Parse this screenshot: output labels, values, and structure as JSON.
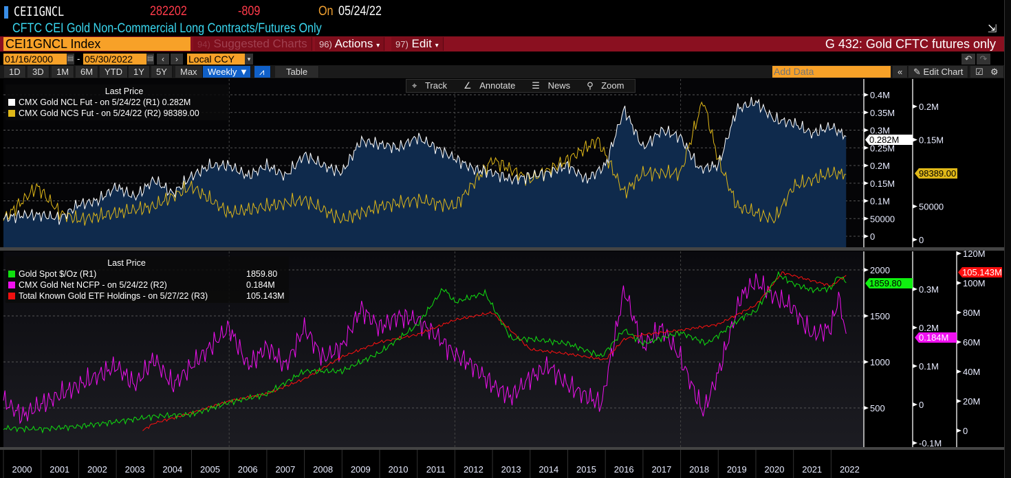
{
  "header": {
    "ticker": "CEI1GNCL",
    "last": "282202",
    "change": "-809",
    "on_label": "On",
    "date": "05/24/22",
    "description": "CFTC CEI Gold Non-Commercial Long Contracts/Futures Only"
  },
  "command": {
    "security": "CEI1GNCL Index",
    "suggested": "Suggested Charts",
    "suggested_num": "94)",
    "actions": "Actions",
    "actions_num": "96)",
    "edit": "Edit",
    "edit_num": "97)",
    "chart_title": "G 432: Gold CFTC futures only"
  },
  "range": {
    "start": "01/16/2000",
    "sep": "-",
    "end": "05/30/2022",
    "currency": "Local CCY"
  },
  "toolbar": {
    "periods": [
      "1D",
      "3D",
      "1M",
      "6M",
      "YTD",
      "1Y",
      "5Y",
      "Max"
    ],
    "frequency": "Weekly ▼",
    "table": "Table",
    "add_data_placeholder": "Add Data",
    "edit_chart": "Edit Chart"
  },
  "chart_tools": [
    "Track",
    "Annotate",
    "News",
    "Zoom"
  ],
  "colors": {
    "ncl": "#ffffff",
    "ncs": "#e0b818",
    "spot": "#10e010",
    "ncfp": "#f010f0",
    "etf": "#ff1010",
    "area": "#0f2a4c"
  },
  "chart_data": [
    {
      "type": "line",
      "title": "Last Price",
      "legend": [
        {
          "label": "CMX Gold NCL Fut -  on 5/24/22  (R1)",
          "value": "0.282M"
        },
        {
          "label": "CMX Gold NCS Fut -  on 5/24/22  (R2)",
          "value": "98389.00"
        }
      ],
      "axes": {
        "R1": {
          "ticks": [
            "0",
            "50000",
            "0.1M",
            "0.15M",
            "0.2M",
            "0.25M",
            "0.3M",
            "0.35M",
            "0.4M"
          ],
          "range": [
            0,
            0.42
          ]
        },
        "R2": {
          "ticks": [
            "0",
            "50000",
            "0.15M",
            "0.2M"
          ],
          "range": [
            0,
            0.21
          ]
        }
      },
      "series": [
        {
          "name": "CMX Gold NCL Fut",
          "unit": "M",
          "axis": "R1",
          "x": [
            2000,
            2000.5,
            2001,
            2001.5,
            2002,
            2002.5,
            2003,
            2003.5,
            2004,
            2004.5,
            2005,
            2005.5,
            2006,
            2006.5,
            2007,
            2007.5,
            2008,
            2008.5,
            2009,
            2009.5,
            2010,
            2010.5,
            2011,
            2011.5,
            2012,
            2012.5,
            2013,
            2013.5,
            2014,
            2014.5,
            2015,
            2015.5,
            2016,
            2016.5,
            2017,
            2017.5,
            2018,
            2018.5,
            2019,
            2019.5,
            2020,
            2020.5,
            2021,
            2021.5,
            2022,
            2022.4
          ],
          "y": [
            0.05,
            0.06,
            0.06,
            0.05,
            0.09,
            0.1,
            0.14,
            0.11,
            0.16,
            0.12,
            0.17,
            0.2,
            0.2,
            0.17,
            0.2,
            0.17,
            0.23,
            0.2,
            0.18,
            0.27,
            0.26,
            0.25,
            0.28,
            0.25,
            0.22,
            0.19,
            0.18,
            0.16,
            0.17,
            0.18,
            0.2,
            0.16,
            0.2,
            0.36,
            0.25,
            0.3,
            0.28,
            0.19,
            0.2,
            0.36,
            0.38,
            0.33,
            0.32,
            0.29,
            0.31,
            0.282
          ]
        },
        {
          "name": "CMX Gold NCS Fut",
          "unit": "M",
          "axis": "R2",
          "x": [
            2000,
            2000.9,
            2001.5,
            2002,
            2003,
            2004,
            2005,
            2006,
            2007,
            2008,
            2009,
            2010,
            2011,
            2012,
            2013,
            2014,
            2015,
            2015.8,
            2016.5,
            2017,
            2018,
            2018.6,
            2019,
            2019.5,
            2020,
            2020.5,
            2021,
            2021.5,
            2022,
            2022.4
          ],
          "y": [
            0.03,
            0.08,
            0.04,
            0.03,
            0.04,
            0.05,
            0.08,
            0.04,
            0.05,
            0.06,
            0.03,
            0.05,
            0.06,
            0.05,
            0.12,
            0.09,
            0.12,
            0.15,
            0.07,
            0.1,
            0.1,
            0.21,
            0.12,
            0.05,
            0.04,
            0.03,
            0.08,
            0.09,
            0.1,
            0.098
          ]
        }
      ]
    },
    {
      "type": "line",
      "title": "Last Price",
      "legend": [
        {
          "label": "Gold Spot $/Oz  (R1)",
          "value": "1859.80"
        },
        {
          "label": "CMX Gold Net NCFP -  on 5/24/22  (R2)",
          "value": "0.184M"
        },
        {
          "label": "Total Known Gold ETF Holdings -  on 5/27/22  (R3)",
          "value": "105.143M"
        }
      ],
      "axes": {
        "R1": {
          "ticks": [
            "500",
            "1000",
            "1500",
            "2000"
          ]
        },
        "R2": {
          "ticks": [
            "-0.1M",
            "0",
            "0.1M",
            "0.2M",
            "0.3M"
          ]
        },
        "R3": {
          "ticks": [
            "0",
            "20M",
            "40M",
            "60M",
            "80M",
            "100M",
            "120M"
          ]
        }
      },
      "series": [
        {
          "name": "Gold Spot $/Oz",
          "axis": "R1",
          "x": [
            2000,
            2001,
            2002,
            2003,
            2004,
            2005,
            2006,
            2007,
            2008,
            2009,
            2010,
            2011,
            2011.7,
            2012,
            2012.8,
            2013.5,
            2014,
            2015,
            2015.9,
            2016.5,
            2017,
            2018,
            2018.7,
            2019,
            2019.7,
            2020,
            2020.6,
            2021,
            2021.5,
            2022,
            2022.2,
            2022.4
          ],
          "y": [
            280,
            270,
            300,
            350,
            410,
            430,
            560,
            650,
            900,
            900,
            1100,
            1400,
            1800,
            1650,
            1750,
            1250,
            1250,
            1200,
            1060,
            1350,
            1200,
            1320,
            1200,
            1290,
            1500,
            1550,
            1950,
            1850,
            1780,
            1800,
            1940,
            1859.8
          ]
        },
        {
          "name": "CMX Gold Net NCFP",
          "unit": "M",
          "axis": "R2",
          "x": [
            2000,
            2000.5,
            2001,
            2002,
            2003,
            2003.5,
            2004,
            2004.5,
            2005,
            2005.5,
            2006,
            2006.5,
            2007,
            2007.5,
            2008,
            2008.5,
            2009,
            2009.5,
            2010,
            2010.5,
            2011,
            2011.5,
            2012,
            2012.5,
            2013,
            2013.5,
            2014,
            2014.5,
            2015,
            2015.9,
            2016.5,
            2017,
            2017.5,
            2018,
            2018.6,
            2019,
            2019.6,
            2020,
            2020.5,
            2021,
            2021.5,
            2022,
            2022.2,
            2022.4
          ],
          "y": [
            0.01,
            -0.03,
            0,
            0.05,
            0.1,
            0.05,
            0.12,
            0.05,
            0.1,
            0.15,
            0.2,
            0.1,
            0.15,
            0.1,
            0.2,
            0.12,
            0.15,
            0.25,
            0.2,
            0.23,
            0.22,
            0.18,
            0.13,
            0.1,
            0.05,
            0.02,
            0.07,
            0.1,
            0.05,
            0,
            0.3,
            0.15,
            0.2,
            0.12,
            -0.02,
            0.08,
            0.28,
            0.32,
            0.28,
            0.25,
            0.18,
            0.2,
            0.28,
            0.184
          ]
        },
        {
          "name": "Total Known Gold ETF Holdings",
          "unit": "M",
          "axis": "R3",
          "x": [
            2003.7,
            2004,
            2005,
            2006,
            2007,
            2008,
            2009,
            2010,
            2011,
            2012,
            2013,
            2014,
            2015,
            2016,
            2016.5,
            2017,
            2018,
            2019,
            2020,
            2020.7,
            2021,
            2022,
            2022.4
          ],
          "y": [
            0,
            5,
            12,
            20,
            25,
            35,
            50,
            60,
            65,
            75,
            80,
            55,
            52,
            48,
            62,
            65,
            68,
            72,
            85,
            107,
            105,
            98,
            105.143
          ]
        }
      ]
    }
  ],
  "xaxis": {
    "years": [
      "2000",
      "2001",
      "2002",
      "2003",
      "2004",
      "2005",
      "2006",
      "2007",
      "2008",
      "2009",
      "2010",
      "2011",
      "2012",
      "2013",
      "2014",
      "2015",
      "2016",
      "2017",
      "2018",
      "2019",
      "2020",
      "2021",
      "2022"
    ]
  }
}
